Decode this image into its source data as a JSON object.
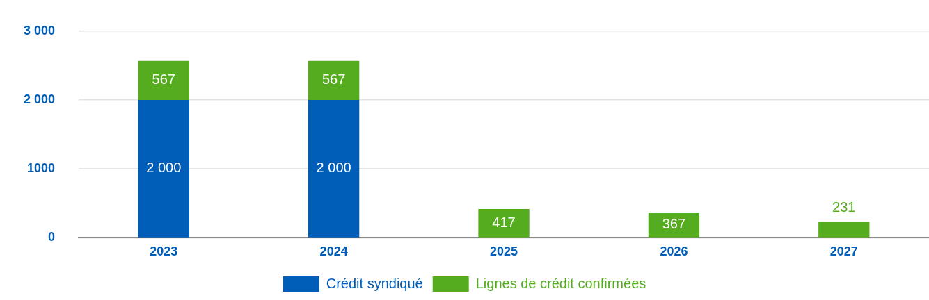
{
  "chart_data": {
    "type": "bar",
    "categories": [
      "2023",
      "2024",
      "2025",
      "2026",
      "2027"
    ],
    "stacked": true,
    "series": [
      {
        "name": "Crédit syndiqué",
        "color": "#005eb8",
        "values": [
          2000,
          2000,
          null,
          null,
          null
        ],
        "value_labels": [
          "2 000",
          "2 000",
          null,
          null,
          null
        ]
      },
      {
        "name": "Lignes de crédit confirmées",
        "color": "#56ac1f",
        "values": [
          567,
          567,
          417,
          367,
          231
        ],
        "value_labels": [
          "567",
          "567",
          "417",
          "367",
          "231"
        ]
      }
    ],
    "ylim": [
      0,
      3000
    ],
    "yticks": [
      0,
      {
        "value": 1000,
        "label": "1000"
      },
      {
        "value": 2000,
        "label": "2 000"
      },
      {
        "value": 3000,
        "label": "3 000"
      }
    ],
    "grid": "y",
    "legend": "bottom"
  }
}
